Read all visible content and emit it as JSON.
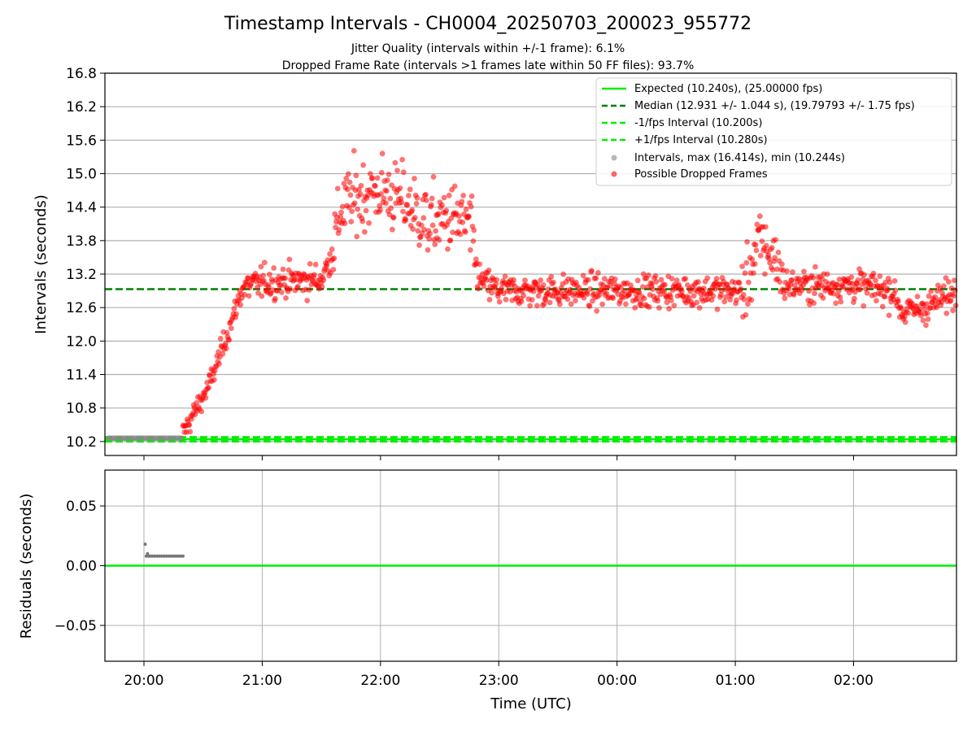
{
  "figure": {
    "title": "Timestamp Intervals - CH0004_20250703_200023_955772",
    "subtitle_1": "Jitter Quality (intervals within +/-1 frame): 6.1%",
    "subtitle_2": "Dropped Frame Rate (intervals >1 frames late within 50 FF files): 93.7%"
  },
  "chart_data": [
    {
      "type": "scatter",
      "panel": "top",
      "xlabel": "",
      "ylabel": "Intervals (seconds)",
      "xlim_hours": [
        19.67,
        26.87
      ],
      "ylim": [
        9.95,
        16.8
      ],
      "yticks": [
        10.2,
        10.8,
        11.4,
        12.0,
        12.6,
        13.2,
        13.8,
        14.4,
        15.0,
        15.6,
        16.2,
        16.8
      ],
      "ytick_labels": [
        "10.2",
        "10.8",
        "11.4",
        "12.0",
        "12.6",
        "13.2",
        "13.8",
        "14.4",
        "15.0",
        "15.6",
        "16.2",
        "16.8"
      ],
      "grid": "horizontal",
      "legend_position": "top-right",
      "lines": [
        {
          "name": "Expected (10.240s), (25.00000 fps)",
          "y": 10.24,
          "color": "#00ee00",
          "style": "solid"
        },
        {
          "name": "Median (12.931 +/- 1.044 s), (19.79793 +/- 1.75 fps)",
          "y": 12.931,
          "color": "#008000",
          "style": "dashed"
        },
        {
          "name": "-1/fps Interval (10.200s)",
          "y": 10.2,
          "color": "#00ee00",
          "style": "dashed"
        },
        {
          "name": "+1/fps Interval (10.280s)",
          "y": 10.28,
          "color": "#00ee00",
          "style": "dashed"
        }
      ],
      "series": [
        {
          "name": "Intervals, max (16.414s), min (10.244s)",
          "color": "#888888",
          "marker": "circle"
        },
        {
          "name": "Possible Dropped Frames",
          "color": "#ff0000",
          "marker": "circle"
        }
      ],
      "trend_profile": {
        "description_of_shape": "red points: ramp from ~10.3 at 20:20 to ~13.0 at 20:50, plateau ~13.0 until 21:35, rise to ~14.6 (peaks ~16.4) 21:35-22:50, plateau ~12.9 until 01:05, spike to ~13.8 (peak ~15.0) 01:05-01:25, ~13.0 until 02:20, dip ~12.5, then ~12.9",
        "x_hours": [
          20.33,
          20.55,
          20.75,
          20.83,
          21.0,
          21.5,
          21.58,
          21.67,
          21.83,
          22.0,
          22.2,
          22.4,
          22.6,
          22.75,
          22.83,
          23.0,
          24.0,
          25.0,
          25.08,
          25.2,
          25.33,
          25.42,
          25.5,
          26.0,
          26.33,
          26.42,
          26.6,
          26.87
        ],
        "y_values": [
          10.35,
          11.2,
          12.4,
          12.95,
          13.05,
          13.1,
          13.5,
          14.4,
          14.6,
          14.7,
          14.5,
          14.1,
          14.2,
          14.1,
          13.1,
          12.9,
          12.9,
          12.9,
          12.9,
          13.8,
          13.5,
          13.0,
          13.0,
          13.0,
          12.9,
          12.5,
          12.6,
          12.9
        ],
        "noise_sd": 0.2
      }
    },
    {
      "type": "scatter",
      "panel": "bottom",
      "xlabel": "Time (UTC)",
      "ylabel": "Residuals (seconds)",
      "xlim_hours": [
        19.67,
        26.87
      ],
      "ylim": [
        -0.08,
        0.08
      ],
      "yticks": [
        -0.05,
        0.0,
        0.05
      ],
      "ytick_labels": [
        "−0.05",
        "0.00",
        "0.05"
      ],
      "xticks_hours": [
        20,
        21,
        22,
        23,
        24,
        25,
        26
      ],
      "xtick_labels": [
        "20:00",
        "21:00",
        "22:00",
        "23:00",
        "00:00",
        "01:00",
        "02:00"
      ],
      "grid": "both",
      "reference_line": {
        "y": 0.0,
        "color": "#00ee00"
      },
      "series": [
        {
          "name": "Residuals",
          "color": "#777777",
          "x_hours": [
            20.01,
            20.02,
            20.03,
            20.04,
            20.05,
            20.07,
            20.09,
            20.11,
            20.13,
            20.15,
            20.17,
            20.19,
            20.21,
            20.23,
            20.25,
            20.27,
            20.29,
            20.31,
            20.33
          ],
          "values": [
            0.018,
            0.008,
            0.01,
            0.008,
            0.008,
            0.008,
            0.008,
            0.008,
            0.008,
            0.008,
            0.008,
            0.008,
            0.008,
            0.008,
            0.008,
            0.008,
            0.008,
            0.008,
            0.008
          ]
        }
      ]
    }
  ]
}
